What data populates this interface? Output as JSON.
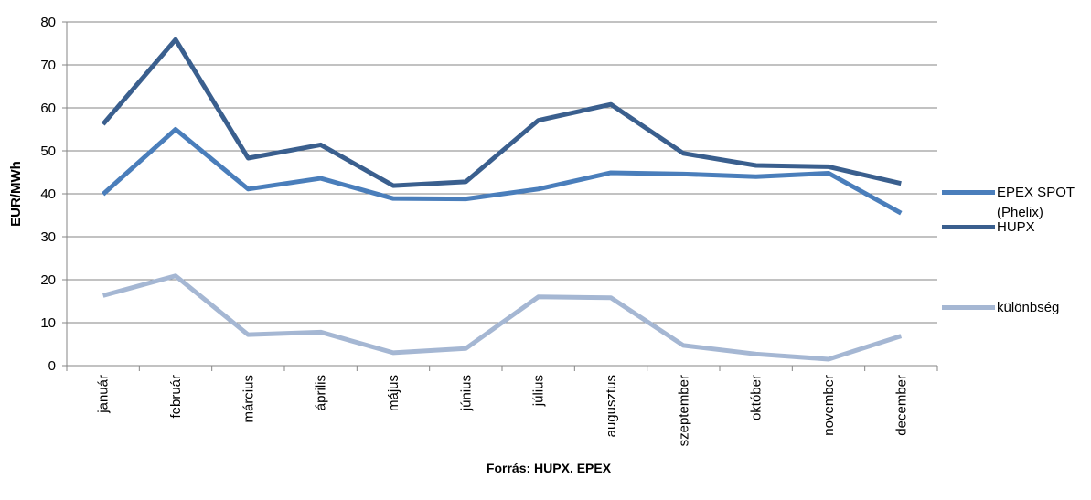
{
  "chart_data": {
    "type": "line",
    "y_label": "EUR/MWh",
    "source": "Forrás: HUPX. EPEX",
    "categories": [
      "január",
      "február",
      "március",
      "április",
      "május",
      "június",
      "július",
      "augusztus",
      "szeptember",
      "október",
      "november",
      "december"
    ],
    "series": [
      {
        "name": "HUPX",
        "color": "#3a5f8e",
        "values": [
          56.2,
          75.9,
          48.3,
          51.4,
          41.9,
          42.8,
          57.1,
          60.8,
          49.4,
          46.6,
          46.3,
          42.4
        ]
      },
      {
        "name": "EPEX SPOT (Phelix)",
        "color": "#4a7ebb",
        "values": [
          39.9,
          55.0,
          41.1,
          43.6,
          38.9,
          38.8,
          41.1,
          44.9,
          44.6,
          44.0,
          44.8,
          35.5
        ]
      },
      {
        "name": "különbség",
        "color": "#a5b7d3",
        "values": [
          16.3,
          20.9,
          7.2,
          7.8,
          3.0,
          4.0,
          16.0,
          15.8,
          4.7,
          2.7,
          1.5,
          6.9
        ]
      }
    ],
    "ylim": [
      0,
      80
    ],
    "yticks": [
      0,
      10,
      20,
      30,
      40,
      50,
      60,
      70,
      80
    ],
    "grid": true,
    "legend": "right"
  }
}
